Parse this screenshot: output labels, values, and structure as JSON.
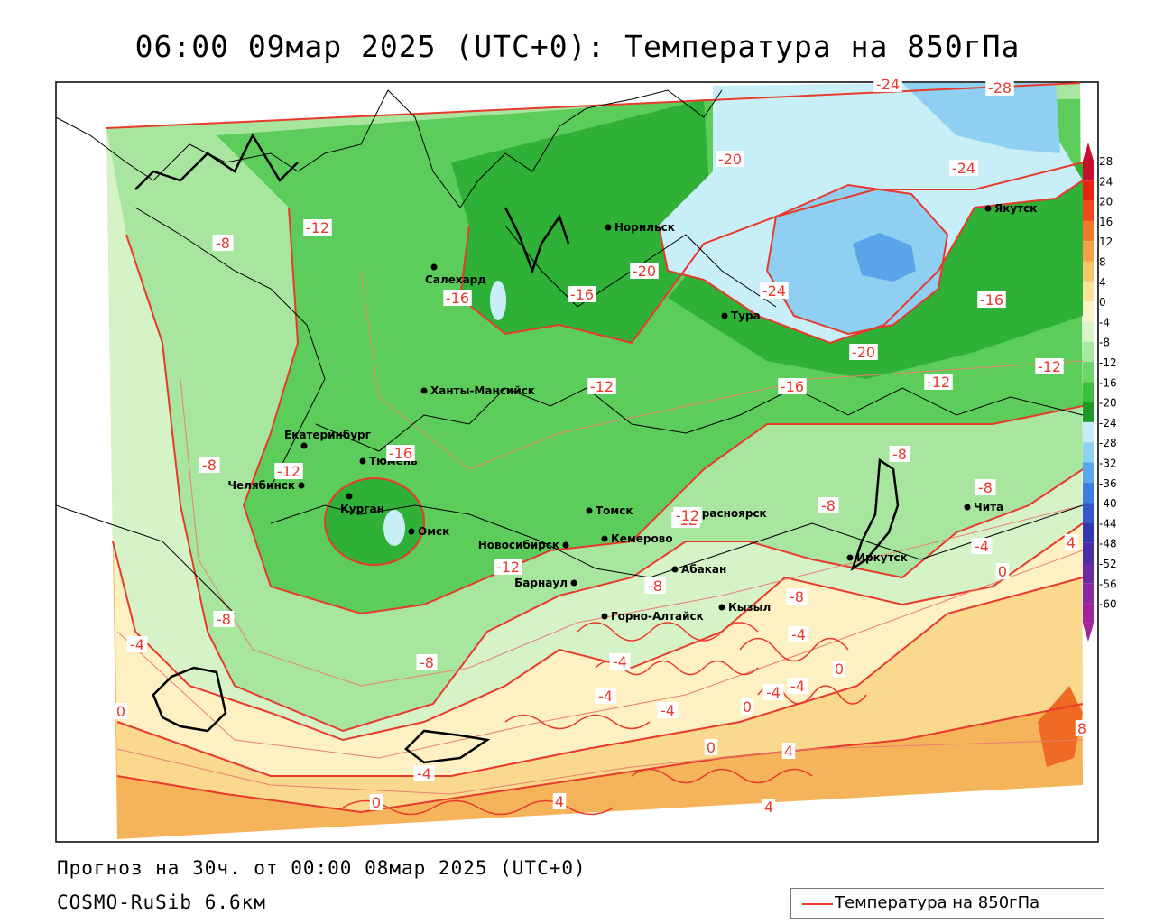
{
  "title": "06:00 09мар 2025 (UTC+0): Температура на 850гПа",
  "footer": {
    "forecast": "Прогноз на 30ч. от 00:00 08мар 2025 (UTC+0)",
    "model": "COSMO-RuSib 6.6км"
  },
  "legend": {
    "label": "Температура на 850гПа",
    "line_color": "#e83a2c"
  },
  "colorbar": {
    "ticks": [
      "28",
      "24",
      "20",
      "16",
      "12",
      "8",
      "4",
      "0",
      "-4",
      "-8",
      "-12",
      "-16",
      "-20",
      "-24",
      "-28",
      "-32",
      "-36",
      "-40",
      "-44",
      "-48",
      "-52",
      "-56",
      "-60"
    ],
    "colors": [
      "#c8102e",
      "#e52310",
      "#f04a1a",
      "#f47a28",
      "#f6a04a",
      "#f7c66a",
      "#fce39c",
      "#fdf3c8",
      "#d9f4cc",
      "#a8e8a0",
      "#6fd46a",
      "#3cbf3c",
      "#1e9a28",
      "#c6ecf7",
      "#8fd2f2",
      "#5aa8ec",
      "#3c7fe0",
      "#3456cc",
      "#3238b4",
      "#4a2ca6",
      "#6a2aa0",
      "#8a2aa0",
      "#a0249a"
    ]
  },
  "cities": [
    {
      "name": "Якутск"
    },
    {
      "name": "Норильск"
    },
    {
      "name": "Салехард"
    },
    {
      "name": "Тура"
    },
    {
      "name": "Ханты-Мансийск"
    },
    {
      "name": "Екатеринбург"
    },
    {
      "name": "Тюмень"
    },
    {
      "name": "Челябинск"
    },
    {
      "name": "Курган"
    },
    {
      "name": "Омск"
    },
    {
      "name": "Новосибирск"
    },
    {
      "name": "Томск"
    },
    {
      "name": "Кемерово"
    },
    {
      "name": "Красноярск"
    },
    {
      "name": "Барнаул"
    },
    {
      "name": "Абакан"
    },
    {
      "name": "Кызыл"
    },
    {
      "name": "Горно-Алтайск"
    },
    {
      "name": "Иркутск"
    },
    {
      "name": "Чита"
    }
  ],
  "isotherm_labels": [
    "-24",
    "-28",
    "-20",
    "-24",
    "-12",
    "-8",
    "-16",
    "-16",
    "-20",
    "-24",
    "-16",
    "-12",
    "-20",
    "-12",
    "-16",
    "-12",
    "-16",
    "-12",
    "-8",
    "-12",
    "-8",
    "-8",
    "-8",
    "-12",
    "-12",
    "-4",
    "-8",
    "0",
    "4",
    "-8",
    "-8",
    "-4",
    "-8",
    "-4",
    "-4",
    "0",
    "-4",
    "-4",
    "-4",
    "-4",
    "0",
    "0",
    "4",
    "8",
    "-4",
    "0",
    "0",
    "4",
    "4"
  ]
}
